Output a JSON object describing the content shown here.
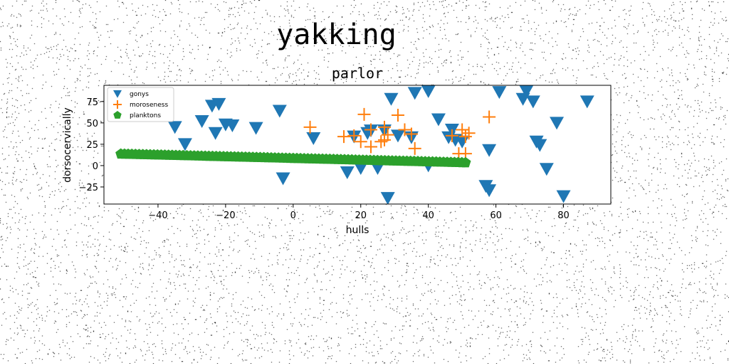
{
  "suptitle": "yakking",
  "chart_data": {
    "type": "scatter",
    "title": "parlor",
    "xlabel": "hulls",
    "ylabel": "dorsocervically",
    "xlim": [
      -56,
      94
    ],
    "ylim": [
      -45,
      94
    ],
    "xticks": [
      -40,
      -20,
      0,
      20,
      40,
      60,
      80
    ],
    "yticks": [
      -25,
      0,
      25,
      50,
      75
    ],
    "grid": false,
    "legend_position": "top-left",
    "series": [
      {
        "name": "gonys",
        "marker": "triangle-down",
        "color": "#1f77b4",
        "points": [
          [
            -35,
            45
          ],
          [
            -32,
            25
          ],
          [
            -27,
            52
          ],
          [
            -24,
            70
          ],
          [
            -23,
            38
          ],
          [
            -22,
            72
          ],
          [
            -20,
            48
          ],
          [
            -18,
            47
          ],
          [
            -11,
            44
          ],
          [
            -4,
            64
          ],
          [
            -3,
            -15
          ],
          [
            6,
            32
          ],
          [
            16,
            -8
          ],
          [
            18,
            34
          ],
          [
            20,
            -3
          ],
          [
            22,
            38
          ],
          [
            23,
            41
          ],
          [
            25,
            -3
          ],
          [
            27,
            41
          ],
          [
            28,
            -38
          ],
          [
            29,
            78
          ],
          [
            31,
            35
          ],
          [
            35,
            33
          ],
          [
            36,
            85
          ],
          [
            40,
            87
          ],
          [
            40,
            0
          ],
          [
            43,
            54
          ],
          [
            46,
            33
          ],
          [
            47,
            42
          ],
          [
            48,
            30
          ],
          [
            50,
            28
          ],
          [
            57,
            -24
          ],
          [
            58,
            -29
          ],
          [
            58,
            18
          ],
          [
            61,
            86
          ],
          [
            68,
            78
          ],
          [
            69,
            87
          ],
          [
            71,
            75
          ],
          [
            72,
            28
          ],
          [
            73,
            24
          ],
          [
            75,
            -4
          ],
          [
            78,
            50
          ],
          [
            80,
            -36
          ],
          [
            87,
            75
          ]
        ]
      },
      {
        "name": "moroseness",
        "marker": "plus",
        "color": "#ff7f0e",
        "points": [
          [
            5,
            45
          ],
          [
            15,
            34
          ],
          [
            18,
            35
          ],
          [
            20,
            28
          ],
          [
            21,
            60
          ],
          [
            23,
            42
          ],
          [
            23,
            22
          ],
          [
            26,
            28
          ],
          [
            27,
            45
          ],
          [
            27,
            30
          ],
          [
            28,
            36
          ],
          [
            31,
            59
          ],
          [
            33,
            42
          ],
          [
            35,
            37
          ],
          [
            36,
            20
          ],
          [
            47,
            35
          ],
          [
            49,
            14
          ],
          [
            50,
            42
          ],
          [
            51,
            34
          ],
          [
            51,
            14
          ],
          [
            52,
            38
          ],
          [
            58,
            57
          ]
        ]
      },
      {
        "name": "planktons",
        "marker": "pentagon",
        "color": "#2ca02c",
        "line": {
          "x_start": -51,
          "x_end": 51,
          "count": 95,
          "y_start": 13.6,
          "y_end": 3.4
        }
      }
    ]
  }
}
